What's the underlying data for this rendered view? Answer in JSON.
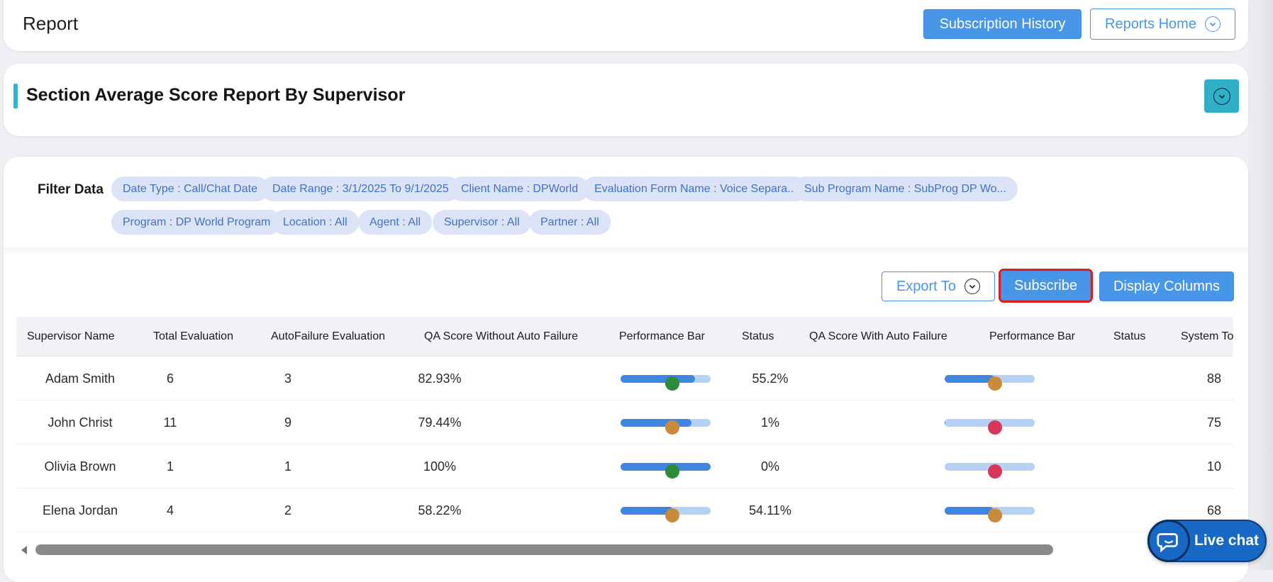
{
  "header": {
    "title": "Report",
    "subscription_history_label": "Subscription History",
    "reports_home_label": "Reports Home"
  },
  "section": {
    "title": "Section Average Score Report By Supervisor"
  },
  "filters": {
    "label": "Filter Data",
    "chips": [
      "Date Type : Call/Chat Date",
      "Date Range : 3/1/2025 To 9/1/2025",
      "Client Name : DPWorld",
      "Evaluation Form Name : Voice Separa...",
      "Sub Program Name : SubProg DP Wo...",
      "Program : DP World Program",
      "Location : All",
      "Agent : All",
      "Supervisor : All",
      "Partner : All"
    ]
  },
  "toolbar": {
    "export_label": "Export To",
    "subscribe_label": "Subscribe",
    "display_columns_label": "Display Columns"
  },
  "table": {
    "columns": [
      "Supervisor Name",
      "Total Evaluation",
      "AutoFailure Evaluation",
      "QA Score Without Auto Failure",
      "Performance Bar",
      "Status",
      "QA Score With Auto Failure",
      "Performance Bar",
      "Status",
      "System To"
    ],
    "rows": [
      {
        "name": "Adam Smith",
        "total": "6",
        "autofail": "3",
        "qa_without": "82.93%",
        "bar1": 0.83,
        "status1": "#2e8b3a",
        "qa_with": "55.2%",
        "bar2": 0.55,
        "status2": "#c98a3a",
        "system": "88"
      },
      {
        "name": "John Christ",
        "total": "11",
        "autofail": "9",
        "qa_without": "79.44%",
        "bar1": 0.79,
        "status1": "#c98a3a",
        "qa_with": "1%",
        "bar2": 0.01,
        "status2": "#d9365a",
        "system": "75"
      },
      {
        "name": "Olivia Brown",
        "total": "1",
        "autofail": "1",
        "qa_without": "100%",
        "bar1": 1.0,
        "status1": "#2e8b3a",
        "qa_with": "0%",
        "bar2": 0.0,
        "status2": "#d9365a",
        "system": "10"
      },
      {
        "name": "Elena Jordan",
        "total": "4",
        "autofail": "2",
        "qa_without": "58.22%",
        "bar1": 0.58,
        "status1": "#c98a3a",
        "qa_with": "54.11%",
        "bar2": 0.54,
        "status2": "#c98a3a",
        "system": "68"
      }
    ]
  },
  "livechat": {
    "label": "Live chat"
  }
}
